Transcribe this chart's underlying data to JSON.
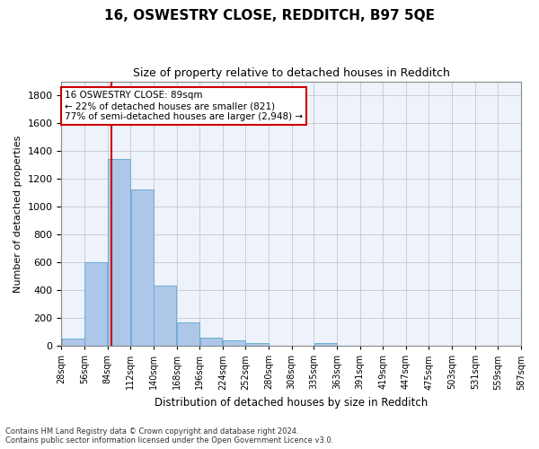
{
  "title": "16, OSWESTRY CLOSE, REDDITCH, B97 5QE",
  "subtitle": "Size of property relative to detached houses in Redditch",
  "xlabel": "Distribution of detached houses by size in Redditch",
  "ylabel": "Number of detached properties",
  "bar_color": "#aec6e8",
  "bar_edge_color": "#6baed6",
  "background_color": "#eef2fb",
  "grid_color": "#c8c8c8",
  "bins": [
    28,
    56,
    84,
    112,
    140,
    168,
    196,
    224,
    252,
    280,
    308,
    335,
    363,
    391,
    419,
    447,
    475,
    503,
    531,
    559,
    587
  ],
  "values": [
    50,
    600,
    1340,
    1120,
    430,
    170,
    60,
    40,
    20,
    0,
    0,
    20,
    0,
    0,
    0,
    0,
    0,
    0,
    0,
    0
  ],
  "property_size": 89,
  "vline_color": "#cc0000",
  "annotation_text": "16 OSWESTRY CLOSE: 89sqm\n← 22% of detached houses are smaller (821)\n77% of semi-detached houses are larger (2,948) →",
  "annotation_box_color": "#ffffff",
  "annotation_border_color": "#cc0000",
  "ylim": [
    0,
    1900
  ],
  "yticks": [
    0,
    200,
    400,
    600,
    800,
    1000,
    1200,
    1400,
    1600,
    1800
  ],
  "footer_line1": "Contains HM Land Registry data © Crown copyright and database right 2024.",
  "footer_line2": "Contains public sector information licensed under the Open Government Licence v3.0."
}
